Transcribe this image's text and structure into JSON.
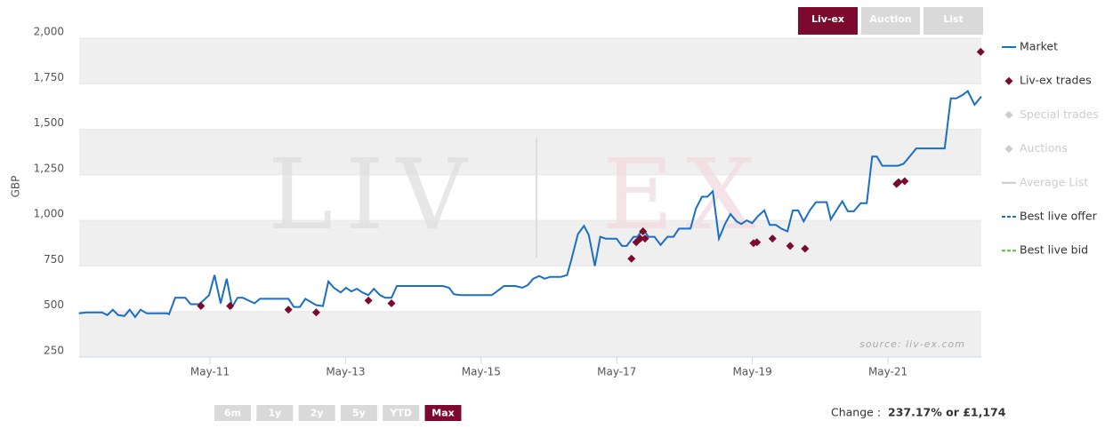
{
  "chart_data": {
    "type": "line",
    "y_axis_label": "GBP",
    "watermark": {
      "left": "LIV",
      "right": "EX"
    },
    "source": "source: liv-ex.com",
    "view_buttons": [
      "Liv-ex",
      "Auction",
      "List"
    ],
    "active_view": 0,
    "range_buttons": [
      "6m",
      "1y",
      "2y",
      "5y",
      "YTD",
      "Max"
    ],
    "active_range": 5,
    "change_label": "Change :",
    "change_value": "237.17% or £1,174",
    "xlim": [
      2009.404,
      2022.71
    ],
    "xticks": [
      {
        "value": 2011.333,
        "label": "May-11"
      },
      {
        "value": 2013.333,
        "label": "May-13"
      },
      {
        "value": 2015.333,
        "label": "May-15"
      },
      {
        "value": 2017.333,
        "label": "May-17"
      },
      {
        "value": 2019.333,
        "label": "May-19"
      },
      {
        "value": 2021.333,
        "label": "May-21"
      }
    ],
    "ylim": [
      250,
      2000
    ],
    "yticks": [
      {
        "value": 250,
        "label": "250"
      },
      {
        "value": 500,
        "label": "500"
      },
      {
        "value": 750,
        "label": "750"
      },
      {
        "value": 1000,
        "label": "1,000"
      },
      {
        "value": 1250,
        "label": "1,250"
      },
      {
        "value": 1500,
        "label": "1,500"
      },
      {
        "value": 1750,
        "label": "1,750"
      },
      {
        "value": 2000,
        "label": "2,000"
      }
    ],
    "grid": true,
    "legend": "right",
    "series": [
      {
        "name": "Market",
        "color": "#1a6fc4",
        "marker": "line",
        "x": [
          2009.4,
          2009.51,
          2009.74,
          2009.82,
          2009.9,
          2009.98,
          2010.07,
          2010.15,
          2010.23,
          2010.31,
          2010.4,
          2010.7,
          2010.73,
          2010.82,
          2010.97,
          2011.05,
          2011.17,
          2011.25,
          2011.32,
          2011.4,
          2011.49,
          2011.58,
          2011.66,
          2011.74,
          2011.82,
          2011.99,
          2012.07,
          2012.49,
          2012.57,
          2012.66,
          2012.74,
          2012.9,
          2013.0,
          2013.08,
          2013.16,
          2013.26,
          2013.34,
          2013.42,
          2013.5,
          2013.58,
          2013.67,
          2013.75,
          2013.84,
          2013.92,
          2014.01,
          2014.09,
          2014.77,
          2014.86,
          2014.93,
          2015.02,
          2015.49,
          2015.6,
          2015.67,
          2015.84,
          2015.94,
          2016.02,
          2016.1,
          2016.19,
          2016.27,
          2016.35,
          2016.51,
          2016.6,
          2016.66,
          2016.76,
          2016.85,
          2016.92,
          2017.01,
          2017.09,
          2017.17,
          2017.33,
          2017.41,
          2017.48,
          2017.58,
          2017.64,
          2017.72,
          2017.8,
          2017.89,
          2017.98,
          2018.08,
          2018.17,
          2018.25,
          2018.42,
          2018.5,
          2018.59,
          2018.67,
          2018.75,
          2018.84,
          2018.93,
          2019.01,
          2019.1,
          2019.17,
          2019.25,
          2019.33,
          2019.42,
          2019.51,
          2019.59,
          2019.68,
          2019.76,
          2019.85,
          2019.93,
          2020.01,
          2020.09,
          2020.18,
          2020.27,
          2020.43,
          2020.49,
          2020.59,
          2020.66,
          2020.74,
          2020.83,
          2020.93,
          2021.02,
          2021.1,
          2021.17,
          2021.25,
          2021.48,
          2021.56,
          2021.62,
          2021.75,
          2022.17,
          2022.26,
          2022.34,
          2022.44,
          2022.51,
          2022.61,
          2022.71
        ],
        "values": [
          490,
          495,
          495,
          480,
          510,
          480,
          475,
          510,
          470,
          510,
          490,
          490,
          485,
          575,
          575,
          540,
          540,
          565,
          590,
          700,
          545,
          680,
          525,
          575,
          575,
          545,
          570,
          570,
          525,
          525,
          570,
          535,
          530,
          665,
          630,
          605,
          630,
          610,
          625,
          605,
          590,
          625,
          590,
          575,
          575,
          640,
          640,
          630,
          595,
          590,
          590,
          620,
          640,
          640,
          630,
          645,
          680,
          695,
          680,
          690,
          690,
          700,
          780,
          925,
          970,
          920,
          750,
          910,
          900,
          900,
          860,
          860,
          910,
          910,
          955,
          910,
          910,
          865,
          910,
          910,
          955,
          955,
          1065,
          1130,
          1130,
          1160,
          900,
          980,
          1035,
          995,
          980,
          1000,
          985,
          1025,
          1055,
          975,
          975,
          955,
          940,
          1055,
          1055,
          995,
          1055,
          1100,
          1100,
          1005,
          1065,
          1105,
          1050,
          1050,
          1095,
          1095,
          1350,
          1350,
          1300,
          1300,
          1310,
          1335,
          1395,
          1395,
          1670,
          1670,
          1690,
          1710,
          1635,
          1680
        ]
      },
      {
        "name": "Liv-ex trades",
        "color": "#7b0a2e",
        "marker": "diamond",
        "x": [
          2011.2,
          2011.63,
          2012.49,
          2012.9,
          2013.67,
          2014.01,
          2017.55,
          2017.62,
          2017.68,
          2017.72,
          2017.75,
          2019.35,
          2019.4,
          2019.63,
          2019.89,
          2020.11,
          2021.46,
          2021.49,
          2021.58,
          2022.7
        ],
        "values": [
          530,
          530,
          510,
          495,
          560,
          545,
          790,
          880,
          900,
          940,
          900,
          875,
          880,
          900,
          860,
          845,
          1200,
          1210,
          1215,
          1925
        ]
      },
      {
        "name": "Special trades",
        "color": "#cccccc",
        "marker": "diamond",
        "x": [],
        "values": []
      },
      {
        "name": "Auctions",
        "color": "#cccccc",
        "marker": "diamond",
        "x": [],
        "values": []
      },
      {
        "name": "Average List",
        "color": "#cccccc",
        "marker": "line",
        "x": [],
        "values": []
      },
      {
        "name": "Best live offer",
        "color": "#1a6fc4",
        "marker": "dash",
        "x": [],
        "values": []
      },
      {
        "name": "Best live bid",
        "color": "#59c13a",
        "marker": "dash",
        "x": [],
        "values": []
      }
    ]
  }
}
